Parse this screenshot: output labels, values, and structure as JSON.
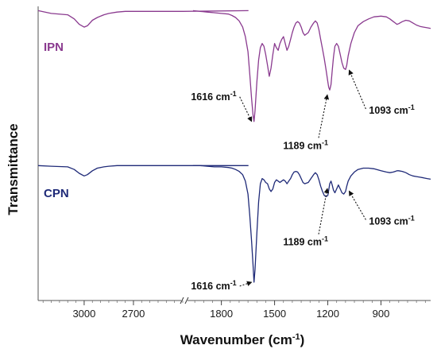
{
  "chart_data": {
    "type": "line",
    "xlabel": "Wavenumber (cm",
    "xlabel_sup": "-1",
    "xlabel_tail": ")",
    "ylabel": "Transmittance",
    "x_axis": {
      "reversed": true,
      "broken": true,
      "segment_high": {
        "range": [
          3280,
          2400
        ],
        "ticks": [
          3000,
          2700
        ]
      },
      "segment_low": {
        "range": [
          2000,
          620
        ],
        "ticks": [
          1800,
          1500,
          1200,
          900
        ]
      }
    },
    "y_axis": {
      "ticks_shown": false
    },
    "grid": false,
    "legend": "none",
    "series": [
      {
        "name": "IPN",
        "color": "#8a3a8f",
        "offset_level": 0.82,
        "x": [
          3280,
          3200,
          3100,
          3060,
          3030,
          3000,
          2980,
          2950,
          2920,
          2880,
          2850,
          2800,
          2750,
          2700,
          2650,
          2600,
          2550,
          2500,
          2450,
          2400,
          2000,
          1960,
          1920,
          1880,
          1840,
          1800,
          1760,
          1740,
          1720,
          1700,
          1680,
          1665,
          1650,
          1640,
          1630,
          1622,
          1616,
          1610,
          1600,
          1590,
          1580,
          1570,
          1560,
          1550,
          1540,
          1530,
          1520,
          1510,
          1500,
          1490,
          1480,
          1470,
          1460,
          1450,
          1440,
          1430,
          1420,
          1410,
          1400,
          1390,
          1380,
          1370,
          1360,
          1350,
          1340,
          1330,
          1310,
          1295,
          1280,
          1270,
          1260,
          1250,
          1240,
          1230,
          1220,
          1210,
          1200,
          1195,
          1189,
          1182,
          1175,
          1168,
          1160,
          1150,
          1140,
          1130,
          1120,
          1110,
          1100,
          1093,
          1085,
          1070,
          1050,
          1030,
          1000,
          970,
          940,
          900,
          870,
          850,
          830,
          820,
          810,
          800,
          780,
          760,
          740,
          720,
          700,
          680,
          660,
          640,
          620
        ],
        "y": [
          0.98,
          0.96,
          0.95,
          0.92,
          0.88,
          0.86,
          0.87,
          0.91,
          0.93,
          0.95,
          0.96,
          0.97,
          0.975,
          0.975,
          0.975,
          0.975,
          0.975,
          0.975,
          0.975,
          0.975,
          0.98,
          0.98,
          0.975,
          0.97,
          0.965,
          0.96,
          0.955,
          0.945,
          0.93,
          0.905,
          0.86,
          0.79,
          0.68,
          0.52,
          0.34,
          0.22,
          0.17,
          0.25,
          0.46,
          0.62,
          0.71,
          0.74,
          0.72,
          0.66,
          0.58,
          0.5,
          0.56,
          0.66,
          0.74,
          0.71,
          0.69,
          0.74,
          0.77,
          0.79,
          0.74,
          0.69,
          0.72,
          0.77,
          0.82,
          0.86,
          0.89,
          0.9,
          0.89,
          0.86,
          0.82,
          0.8,
          0.82,
          0.86,
          0.89,
          0.905,
          0.89,
          0.84,
          0.77,
          0.7,
          0.63,
          0.55,
          0.46,
          0.42,
          0.4,
          0.44,
          0.54,
          0.64,
          0.72,
          0.74,
          0.72,
          0.66,
          0.6,
          0.56,
          0.55,
          0.58,
          0.65,
          0.74,
          0.82,
          0.87,
          0.9,
          0.92,
          0.935,
          0.94,
          0.935,
          0.92,
          0.9,
          0.89,
          0.88,
          0.885,
          0.9,
          0.91,
          0.905,
          0.89,
          0.875,
          0.865,
          0.86,
          0.855,
          0.85
        ]
      },
      {
        "name": "CPN",
        "color": "#1f2a78",
        "offset_level": 0.28,
        "x": [
          3280,
          3200,
          3100,
          3060,
          3030,
          3000,
          2980,
          2950,
          2920,
          2880,
          2850,
          2800,
          2750,
          2700,
          2650,
          2600,
          2550,
          2500,
          2450,
          2400,
          2000,
          1960,
          1920,
          1880,
          1840,
          1800,
          1760,
          1740,
          1720,
          1700,
          1680,
          1665,
          1650,
          1640,
          1630,
          1622,
          1616,
          1610,
          1600,
          1590,
          1580,
          1570,
          1560,
          1550,
          1540,
          1530,
          1520,
          1510,
          1500,
          1490,
          1480,
          1470,
          1460,
          1450,
          1440,
          1430,
          1420,
          1410,
          1400,
          1390,
          1380,
          1370,
          1360,
          1350,
          1340,
          1330,
          1310,
          1295,
          1280,
          1270,
          1260,
          1250,
          1240,
          1230,
          1220,
          1210,
          1200,
          1195,
          1189,
          1182,
          1175,
          1168,
          1160,
          1150,
          1140,
          1130,
          1120,
          1110,
          1100,
          1093,
          1085,
          1070,
          1050,
          1030,
          1000,
          970,
          940,
          900,
          870,
          850,
          830,
          820,
          810,
          800,
          780,
          760,
          740,
          720,
          700,
          680,
          660,
          640,
          620
        ],
        "y": [
          0.98,
          0.975,
          0.97,
          0.95,
          0.92,
          0.9,
          0.91,
          0.94,
          0.96,
          0.97,
          0.975,
          0.98,
          0.98,
          0.98,
          0.98,
          0.98,
          0.98,
          0.98,
          0.98,
          0.98,
          0.98,
          0.98,
          0.98,
          0.975,
          0.97,
          0.97,
          0.965,
          0.96,
          0.95,
          0.935,
          0.91,
          0.86,
          0.76,
          0.6,
          0.4,
          0.22,
          0.08,
          0.18,
          0.46,
          0.7,
          0.84,
          0.88,
          0.87,
          0.85,
          0.84,
          0.8,
          0.78,
          0.8,
          0.85,
          0.87,
          0.86,
          0.85,
          0.86,
          0.87,
          0.86,
          0.84,
          0.86,
          0.88,
          0.91,
          0.93,
          0.935,
          0.93,
          0.91,
          0.88,
          0.85,
          0.84,
          0.85,
          0.88,
          0.91,
          0.925,
          0.91,
          0.87,
          0.82,
          0.78,
          0.75,
          0.74,
          0.75,
          0.79,
          0.84,
          0.86,
          0.83,
          0.79,
          0.77,
          0.8,
          0.83,
          0.8,
          0.77,
          0.76,
          0.78,
          0.82,
          0.86,
          0.9,
          0.93,
          0.95,
          0.96,
          0.96,
          0.955,
          0.94,
          0.93,
          0.925,
          0.93,
          0.935,
          0.94,
          0.94,
          0.935,
          0.925,
          0.91,
          0.9,
          0.895,
          0.89,
          0.885,
          0.88,
          0.875
        ]
      }
    ],
    "annotations": [
      {
        "series": "IPN",
        "label": "1616 cm",
        "sup": "-1",
        "x": 1616,
        "label_side": "left",
        "label_level": 0.35
      },
      {
        "series": "IPN",
        "label": "1189 cm",
        "sup": "-1",
        "x": 1189,
        "label_side": "below",
        "label_level": 0.05
      },
      {
        "series": "IPN",
        "label": "1093 cm",
        "sup": "-1",
        "x": 1093,
        "label_side": "right",
        "label_level": 0.25
      },
      {
        "series": "CPN",
        "label": "1189 cm",
        "sup": "-1",
        "x": 1189,
        "label_side": "below",
        "label_level": 0.45
      },
      {
        "series": "CPN",
        "label": "1093 cm",
        "sup": "-1",
        "x": 1093,
        "label_side": "right",
        "label_level": 0.55
      },
      {
        "series": "CPN",
        "label": "1616 cm",
        "sup": "-1",
        "x": 1616,
        "label_side": "left",
        "label_level": 0.05
      }
    ]
  }
}
